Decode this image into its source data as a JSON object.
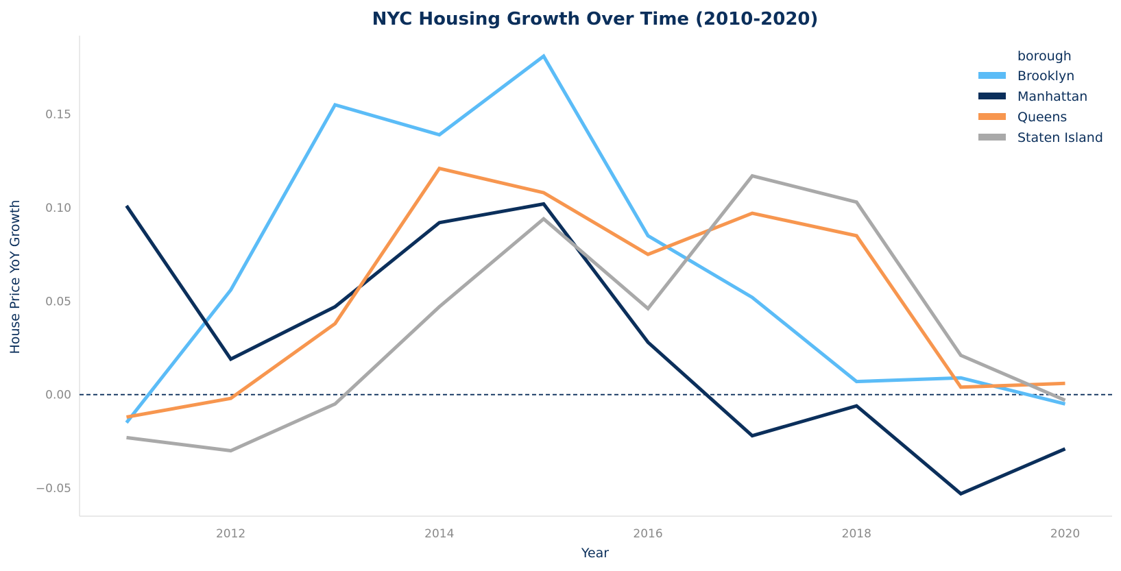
{
  "chart_data": {
    "type": "line",
    "title": "NYC Housing Growth Over Time (2010-2020)",
    "xlabel": "Year",
    "ylabel": "House Price YoY Growth",
    "x": [
      2011,
      2012,
      2013,
      2014,
      2015,
      2016,
      2017,
      2018,
      2019,
      2020
    ],
    "xlim": [
      2010.55,
      2020.45
    ],
    "ylim": [
      -0.065,
      0.192
    ],
    "x_ticks": [
      2012,
      2014,
      2016,
      2018,
      2020
    ],
    "y_ticks": [
      -0.05,
      0,
      0.05,
      0.1,
      0.15
    ],
    "y_tick_labels": [
      "−0.05",
      "0.00",
      "0.05",
      "0.10",
      "0.15"
    ],
    "reference_line": {
      "y": 0,
      "style": "dashed",
      "color": "#0b2f5b"
    },
    "grid": false,
    "legend": {
      "title": "borough",
      "position": "top-right"
    },
    "series": [
      {
        "name": "Brooklyn",
        "color": "#5bbcf7",
        "values": [
          -0.015,
          0.056,
          0.155,
          0.139,
          0.181,
          0.085,
          0.052,
          0.007,
          0.009,
          -0.005
        ]
      },
      {
        "name": "Manhattan",
        "color": "#0b2f5b",
        "values": [
          0.101,
          0.019,
          0.047,
          0.092,
          0.102,
          0.028,
          -0.022,
          -0.006,
          -0.053,
          -0.029
        ]
      },
      {
        "name": "Queens",
        "color": "#f7964f",
        "values": [
          -0.012,
          -0.002,
          0.038,
          0.121,
          0.108,
          0.075,
          0.097,
          0.085,
          0.004,
          0.006
        ]
      },
      {
        "name": "Staten Island",
        "color": "#a9a9a9",
        "values": [
          -0.023,
          -0.03,
          -0.005,
          0.047,
          0.094,
          0.046,
          0.117,
          0.103,
          0.021,
          -0.003
        ]
      }
    ]
  }
}
